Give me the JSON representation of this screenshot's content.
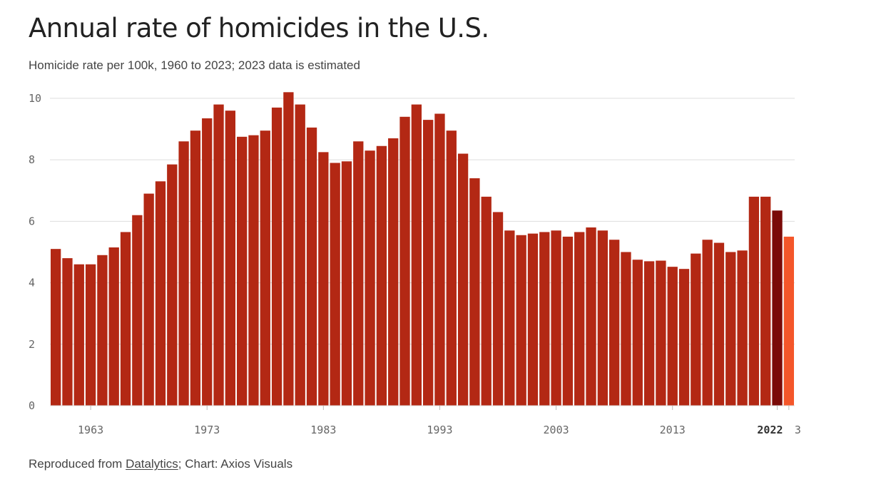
{
  "chart_data": {
    "type": "bar",
    "title": "Annual rate of homicides in the U.S.",
    "subtitle": "Homicide rate per 100k, 1960 to 2023; 2023 data is estimated",
    "ylim": [
      0,
      10.3
    ],
    "yticks": [
      0,
      2,
      4,
      6,
      8,
      10
    ],
    "xtick_labels": [
      {
        "year": 1963,
        "label": "1963"
      },
      {
        "year": 1973,
        "label": "1973"
      },
      {
        "year": 1983,
        "label": "1983"
      },
      {
        "year": 1993,
        "label": "1993"
      },
      {
        "year": 2003,
        "label": "2003"
      },
      {
        "year": 2013,
        "label": "2013"
      },
      {
        "year": 2022,
        "label": "2022",
        "bold": true
      },
      {
        "year": 2023,
        "label": "3"
      }
    ],
    "grid": true,
    "categories": [
      1960,
      1961,
      1962,
      1963,
      1964,
      1965,
      1966,
      1967,
      1968,
      1969,
      1970,
      1971,
      1972,
      1973,
      1974,
      1975,
      1976,
      1977,
      1978,
      1979,
      1980,
      1981,
      1982,
      1983,
      1984,
      1985,
      1986,
      1987,
      1988,
      1989,
      1990,
      1991,
      1992,
      1993,
      1994,
      1995,
      1996,
      1997,
      1998,
      1999,
      2000,
      2001,
      2002,
      2003,
      2004,
      2005,
      2006,
      2007,
      2008,
      2009,
      2010,
      2011,
      2012,
      2013,
      2014,
      2015,
      2016,
      2017,
      2018,
      2019,
      2020,
      2021,
      2022,
      2023
    ],
    "values": [
      5.1,
      4.8,
      4.6,
      4.6,
      4.9,
      5.15,
      5.65,
      6.2,
      6.9,
      7.3,
      7.85,
      8.6,
      8.95,
      9.35,
      9.8,
      9.6,
      8.75,
      8.8,
      8.95,
      9.7,
      10.2,
      9.8,
      9.05,
      8.25,
      7.9,
      7.95,
      8.6,
      8.3,
      8.45,
      8.7,
      9.4,
      9.8,
      9.3,
      9.5,
      8.95,
      8.2,
      7.4,
      6.8,
      6.3,
      5.7,
      5.55,
      5.6,
      5.65,
      5.7,
      5.5,
      5.65,
      5.8,
      5.7,
      5.4,
      5.0,
      4.75,
      4.7,
      4.72,
      4.52,
      4.45,
      4.95,
      5.4,
      5.3,
      5.0,
      5.05,
      6.8,
      6.8,
      6.35,
      5.5
    ],
    "colors": {
      "default": "#b32814",
      "2022": "#7a0a08",
      "2023": "#f4562a"
    }
  },
  "footer": {
    "prefix": "Reproduced from ",
    "link": "Datalytics",
    "suffix": "; Chart: Axios Visuals"
  }
}
